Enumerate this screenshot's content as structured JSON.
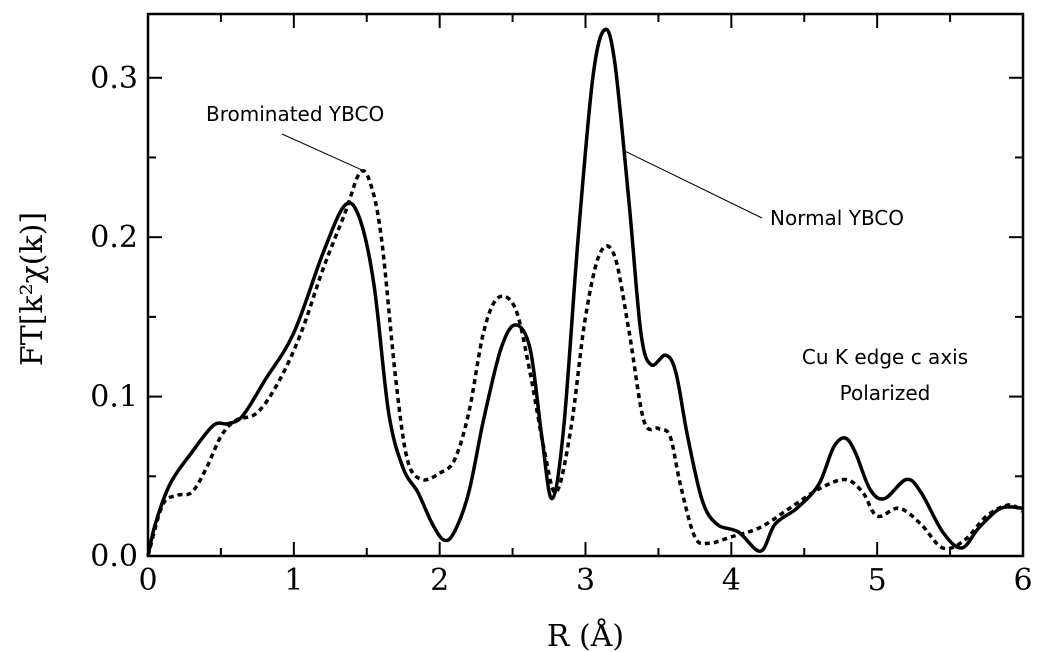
{
  "chart_data": {
    "type": "line",
    "xlabel": "R (Å)",
    "ylabel": "FT[k²χ(k)]",
    "xlim": [
      0,
      6
    ],
    "ylim": [
      0,
      0.34
    ],
    "x_ticks": [
      "0",
      "1",
      "2",
      "3",
      "4",
      "5",
      "6"
    ],
    "x_tick_values": [
      0,
      1,
      2,
      3,
      4,
      5,
      6
    ],
    "y_ticks": [
      "0.0",
      "0.1",
      "0.2",
      "0.3"
    ],
    "y_tick_values": [
      0.0,
      0.1,
      0.2,
      0.3
    ],
    "grid": false,
    "series": [
      {
        "name": "Normal YBCO",
        "style": "solid",
        "color": "#000000",
        "points": [
          [
            0.0,
            0.0
          ],
          [
            0.05,
            0.02
          ],
          [
            0.15,
            0.045
          ],
          [
            0.3,
            0.065
          ],
          [
            0.45,
            0.082
          ],
          [
            0.55,
            0.083
          ],
          [
            0.65,
            0.088
          ],
          [
            0.8,
            0.11
          ],
          [
            1.0,
            0.14
          ],
          [
            1.2,
            0.19
          ],
          [
            1.35,
            0.22
          ],
          [
            1.45,
            0.212
          ],
          [
            1.55,
            0.17
          ],
          [
            1.65,
            0.09
          ],
          [
            1.75,
            0.055
          ],
          [
            1.85,
            0.04
          ],
          [
            1.95,
            0.02
          ],
          [
            2.03,
            0.01
          ],
          [
            2.1,
            0.015
          ],
          [
            2.2,
            0.04
          ],
          [
            2.3,
            0.085
          ],
          [
            2.42,
            0.13
          ],
          [
            2.52,
            0.145
          ],
          [
            2.62,
            0.13
          ],
          [
            2.7,
            0.075
          ],
          [
            2.77,
            0.036
          ],
          [
            2.85,
            0.08
          ],
          [
            2.95,
            0.2
          ],
          [
            3.05,
            0.3
          ],
          [
            3.13,
            0.33
          ],
          [
            3.2,
            0.31
          ],
          [
            3.3,
            0.22
          ],
          [
            3.38,
            0.14
          ],
          [
            3.45,
            0.12
          ],
          [
            3.55,
            0.126
          ],
          [
            3.62,
            0.115
          ],
          [
            3.7,
            0.075
          ],
          [
            3.8,
            0.035
          ],
          [
            3.9,
            0.02
          ],
          [
            4.05,
            0.015
          ],
          [
            4.2,
            0.003
          ],
          [
            4.3,
            0.02
          ],
          [
            4.45,
            0.03
          ],
          [
            4.6,
            0.045
          ],
          [
            4.7,
            0.068
          ],
          [
            4.78,
            0.074
          ],
          [
            4.85,
            0.065
          ],
          [
            4.95,
            0.042
          ],
          [
            5.05,
            0.036
          ],
          [
            5.2,
            0.048
          ],
          [
            5.3,
            0.04
          ],
          [
            5.45,
            0.015
          ],
          [
            5.58,
            0.005
          ],
          [
            5.7,
            0.018
          ],
          [
            5.85,
            0.03
          ],
          [
            6.0,
            0.03
          ]
        ]
      },
      {
        "name": "Brominated YBCO",
        "style": "dotted",
        "color": "#000000",
        "points": [
          [
            0.0,
            0.0
          ],
          [
            0.1,
            0.032
          ],
          [
            0.2,
            0.038
          ],
          [
            0.3,
            0.04
          ],
          [
            0.4,
            0.055
          ],
          [
            0.5,
            0.075
          ],
          [
            0.6,
            0.085
          ],
          [
            0.75,
            0.09
          ],
          [
            0.9,
            0.11
          ],
          [
            1.05,
            0.14
          ],
          [
            1.2,
            0.18
          ],
          [
            1.35,
            0.215
          ],
          [
            1.45,
            0.24
          ],
          [
            1.52,
            0.235
          ],
          [
            1.6,
            0.2
          ],
          [
            1.7,
            0.11
          ],
          [
            1.78,
            0.06
          ],
          [
            1.88,
            0.048
          ],
          [
            2.0,
            0.052
          ],
          [
            2.1,
            0.06
          ],
          [
            2.2,
            0.09
          ],
          [
            2.3,
            0.14
          ],
          [
            2.4,
            0.162
          ],
          [
            2.52,
            0.155
          ],
          [
            2.62,
            0.115
          ],
          [
            2.72,
            0.065
          ],
          [
            2.8,
            0.04
          ],
          [
            2.9,
            0.08
          ],
          [
            3.0,
            0.15
          ],
          [
            3.1,
            0.19
          ],
          [
            3.2,
            0.188
          ],
          [
            3.3,
            0.14
          ],
          [
            3.4,
            0.085
          ],
          [
            3.5,
            0.08
          ],
          [
            3.58,
            0.075
          ],
          [
            3.65,
            0.045
          ],
          [
            3.75,
            0.012
          ],
          [
            3.85,
            0.008
          ],
          [
            4.0,
            0.012
          ],
          [
            4.2,
            0.018
          ],
          [
            4.4,
            0.03
          ],
          [
            4.6,
            0.042
          ],
          [
            4.78,
            0.048
          ],
          [
            4.9,
            0.04
          ],
          [
            5.0,
            0.025
          ],
          [
            5.15,
            0.03
          ],
          [
            5.3,
            0.02
          ],
          [
            5.45,
            0.005
          ],
          [
            5.6,
            0.01
          ],
          [
            5.75,
            0.025
          ],
          [
            5.9,
            0.032
          ],
          [
            6.0,
            0.028
          ]
        ]
      }
    ],
    "annotations": [
      {
        "text": "Brominated YBCO",
        "points_to_series": "Brominated YBCO",
        "target": [
          1.47,
          0.242
        ]
      },
      {
        "text": "Normal YBCO",
        "points_to_series": "Normal YBCO",
        "target": [
          3.27,
          0.254
        ]
      },
      {
        "text": "Cu K edge c axis"
      },
      {
        "text": "Polarized"
      }
    ]
  }
}
